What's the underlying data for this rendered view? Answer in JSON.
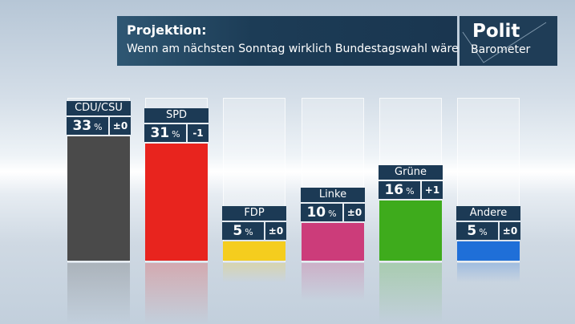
{
  "header": {
    "title": "Projektion:",
    "subtitle": "Wenn am nächsten Sonntag wirklich Bundestagswahl wäre ...",
    "logo_top": "Polit",
    "logo_bottom": "Barometer"
  },
  "chart_data": {
    "type": "bar",
    "title": "Projektion: Wenn am nächsten Sonntag wirklich Bundestagswahl wäre ...",
    "unit": "%",
    "categories": [
      "CDU/CSU",
      "SPD",
      "FDP",
      "Linke",
      "Grüne",
      "Andere"
    ],
    "values": [
      33,
      31,
      5,
      10,
      16,
      5
    ],
    "changes": [
      "±0",
      "-1",
      "±0",
      "±0",
      "+1",
      "±0"
    ],
    "colors": [
      "#4a4a4a",
      "#e8241e",
      "#f5cd1e",
      "#cc3c7a",
      "#3eab1c",
      "#1f6fd8"
    ],
    "ylim": [
      0,
      43
    ]
  }
}
